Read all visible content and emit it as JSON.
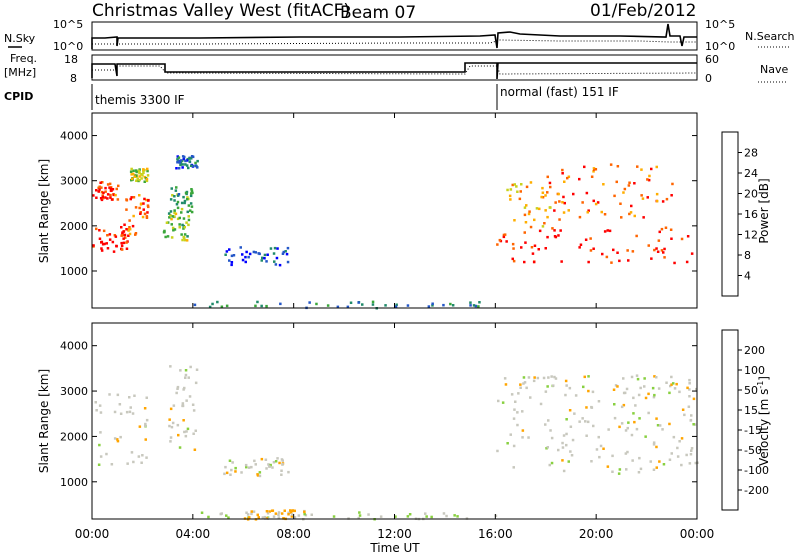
{
  "header": {
    "title": "Christmas Valley West (fitACF)",
    "beam": "Beam 07",
    "date": "01/Feb/2012"
  },
  "nsky_panel": {
    "left_label": "N.Sky",
    "left_ticks": [
      "10^5",
      "10^0"
    ],
    "right_label": "N.Search",
    "right_ticks": [
      "10^5",
      "10^0"
    ]
  },
  "freq_panel": {
    "left_label_1": "Freq.",
    "left_label_2": "[MHz]",
    "left_ticks": [
      "18",
      "8"
    ],
    "right_label": "Nave",
    "right_ticks": [
      "60",
      "0"
    ]
  },
  "cpid": {
    "label": "CPID",
    "segments": [
      {
        "text": "themis 3300 IF",
        "start_hour": 0,
        "end_hour": 16
      },
      {
        "text": "normal (fast) 151 IF",
        "start_hour": 16,
        "end_hour": 24
      }
    ]
  },
  "time_axis": {
    "xlabel": "Time UT",
    "tick_labels": [
      "00:00",
      "04:00",
      "08:00",
      "12:00",
      "16:00",
      "20:00",
      "00:00"
    ]
  },
  "range_axis": {
    "ylabel": "Slant Range [km]",
    "tick_labels": [
      "1000",
      "2000",
      "3000",
      "4000"
    ]
  },
  "power_colorbar": {
    "label": "Power [dB]",
    "tick_labels": [
      "4",
      "8",
      "12",
      "16",
      "20",
      "24",
      "28"
    ],
    "colors": [
      "#0000ff",
      "#2457c8",
      "#208a6a",
      "#3aa63a",
      "#c8d21e",
      "#ffae00",
      "#ff6400",
      "#ff0000"
    ]
  },
  "velocity_colorbar": {
    "label_main": "Velocity [m s",
    "label_sup": "-1",
    "label_end": "]",
    "tick_labels": [
      "200",
      "100",
      "50",
      "15",
      "-15",
      "-50",
      "-100",
      "-200"
    ],
    "colors": [
      "#2040d0",
      "#2d7a8a",
      "#2e9a3c",
      "#88d040",
      "#c8c8be",
      "#ffa500",
      "#ff6a00",
      "#ff3000",
      "#ff0000"
    ]
  },
  "chart_data": [
    {
      "type": "heatmap",
      "name": "power",
      "x_range_hours": [
        0,
        24
      ],
      "y_range_km": [
        180,
        4500
      ],
      "color_range_db": [
        0,
        32
      ],
      "regions": [
        {
          "t": [
            0,
            1.4
          ],
          "r": [
            1400,
            2000
          ],
          "level": 30
        },
        {
          "t": [
            0,
            1.0
          ],
          "r": [
            2600,
            3000
          ],
          "level": 28
        },
        {
          "t": [
            1.2,
            2.2
          ],
          "r": [
            1800,
            2800
          ],
          "level": 26
        },
        {
          "t": [
            1.5,
            2.2
          ],
          "r": [
            3000,
            3300
          ],
          "level": 18
        },
        {
          "t": [
            2.8,
            3.8
          ],
          "r": [
            1700,
            2300
          ],
          "level": 16
        },
        {
          "t": [
            3.0,
            4.0
          ],
          "r": [
            2300,
            2900
          ],
          "level": 12
        },
        {
          "t": [
            3.3,
            4.2
          ],
          "r": [
            3300,
            3600
          ],
          "level": 8
        },
        {
          "t": [
            5.2,
            7.8
          ],
          "r": [
            1150,
            1550
          ],
          "level": 5
        },
        {
          "t": [
            4.0,
            16.0
          ],
          "r": [
            200,
            350
          ],
          "level": 10
        },
        {
          "t": [
            16.0,
            24.0
          ],
          "r": [
            1200,
            2000
          ],
          "level": 30
        },
        {
          "t": [
            16.3,
            18.5
          ],
          "r": [
            2000,
            3000
          ],
          "level": 22
        },
        {
          "t": [
            18.0,
            23.0
          ],
          "r": [
            2200,
            3400
          ],
          "level": 26
        }
      ]
    },
    {
      "type": "heatmap",
      "name": "velocity",
      "x_range_hours": [
        0,
        24
      ],
      "y_range_km": [
        180,
        4500
      ],
      "color_range_ms": [
        -200,
        200
      ],
      "regions": [
        {
          "t": [
            0,
            2.2
          ],
          "r": [
            1400,
            3000
          ],
          "level": 0
        },
        {
          "t": [
            3.0,
            4.2
          ],
          "r": [
            1700,
            3600
          ],
          "level": 0
        },
        {
          "t": [
            5.2,
            7.8
          ],
          "r": [
            1150,
            1550
          ],
          "level": 0
        },
        {
          "t": [
            4.0,
            16.0
          ],
          "r": [
            200,
            350
          ],
          "level": 20
        },
        {
          "t": [
            6.0,
            8.5
          ],
          "r": [
            200,
            400
          ],
          "level": -40
        },
        {
          "t": [
            16.0,
            24.0
          ],
          "r": [
            1200,
            3400
          ],
          "level": 0
        }
      ]
    }
  ]
}
